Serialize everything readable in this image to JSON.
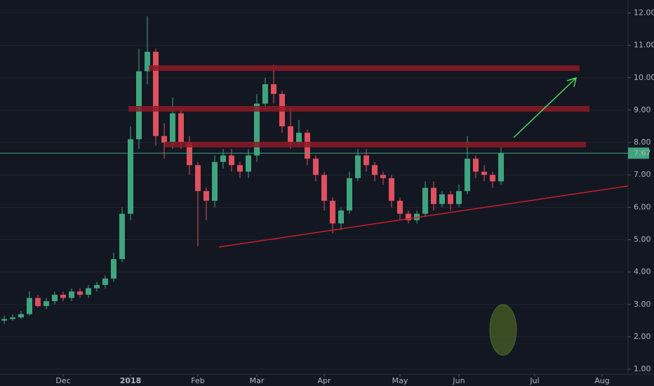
{
  "chart_data": {
    "type": "candlestick",
    "categories": [
      null,
      null,
      null,
      null,
      null,
      null,
      null,
      null,
      null,
      null,
      null,
      null,
      null,
      null,
      null,
      null,
      null,
      null,
      null,
      null,
      null,
      null,
      null,
      null,
      null,
      null,
      null,
      null,
      null,
      null,
      null,
      null,
      null,
      null,
      null,
      null,
      null,
      null,
      null,
      null,
      null,
      null,
      null,
      null,
      null,
      null,
      null,
      null,
      null,
      null,
      null,
      null,
      null,
      null,
      null,
      null,
      null,
      null,
      null,
      null
    ],
    "open": [
      2.5,
      2.55,
      2.6,
      2.7,
      3.2,
      2.95,
      3.1,
      3.3,
      3.2,
      3.4,
      3.3,
      3.5,
      3.6,
      3.8,
      4.4,
      5.8,
      8.1,
      10.2,
      10.8,
      8.2,
      8.0,
      8.9,
      8.0,
      7.3,
      6.5,
      6.2,
      7.4,
      7.6,
      7.3,
      7.1,
      7.6,
      9.2,
      9.8,
      9.5,
      8.5,
      8.0,
      8.3,
      7.5,
      7.0,
      6.2,
      5.5,
      5.9,
      6.9,
      7.6,
      7.3,
      7.0,
      6.9,
      6.2,
      5.8,
      5.6,
      5.8,
      6.6,
      6.1,
      6.4,
      6.1,
      6.5,
      7.5,
      7.1,
      7.0,
      6.8
    ],
    "high": [
      2.65,
      2.7,
      2.8,
      3.4,
      3.3,
      3.2,
      3.4,
      3.4,
      3.5,
      3.5,
      3.6,
      3.7,
      3.9,
      4.6,
      6.0,
      8.5,
      10.9,
      11.9,
      10.9,
      8.6,
      9.4,
      9.0,
      8.2,
      7.4,
      6.6,
      7.6,
      7.8,
      7.8,
      7.4,
      7.8,
      9.5,
      10.0,
      10.4,
      9.6,
      9.1,
      8.7,
      8.4,
      7.6,
      7.1,
      6.3,
      6.0,
      7.1,
      7.8,
      7.8,
      7.4,
      7.1,
      7.0,
      6.3,
      5.9,
      5.9,
      6.8,
      6.8,
      6.5,
      6.5,
      6.7,
      8.2,
      7.6,
      7.3,
      7.1,
      7.85
    ],
    "low": [
      2.4,
      2.5,
      2.55,
      2.65,
      2.9,
      2.85,
      3.0,
      3.1,
      3.1,
      3.2,
      3.2,
      3.4,
      3.5,
      3.7,
      4.3,
      5.6,
      7.8,
      9.8,
      7.9,
      7.5,
      7.8,
      7.8,
      7.0,
      4.8,
      5.6,
      6.0,
      7.2,
      7.1,
      6.9,
      6.9,
      7.4,
      9.0,
      9.2,
      8.3,
      7.8,
      7.9,
      7.3,
      6.8,
      5.9,
      5.2,
      5.3,
      5.8,
      6.8,
      7.1,
      6.8,
      6.7,
      6.0,
      5.6,
      5.5,
      5.5,
      5.7,
      5.9,
      6.0,
      5.9,
      6.0,
      6.4,
      6.9,
      6.8,
      6.6,
      6.7
    ],
    "close": [
      2.55,
      2.6,
      2.7,
      3.2,
      2.95,
      3.1,
      3.3,
      3.2,
      3.4,
      3.3,
      3.5,
      3.6,
      3.8,
      4.4,
      5.8,
      8.1,
      10.2,
      10.8,
      8.2,
      8.0,
      8.9,
      8.0,
      7.3,
      6.5,
      6.2,
      7.4,
      7.6,
      7.3,
      7.1,
      7.6,
      9.2,
      9.8,
      9.5,
      8.5,
      8.0,
      8.3,
      7.5,
      7.0,
      6.2,
      5.5,
      5.9,
      6.9,
      7.6,
      7.3,
      7.0,
      6.9,
      6.2,
      5.8,
      5.6,
      5.8,
      6.6,
      6.1,
      6.4,
      6.1,
      6.5,
      7.5,
      7.1,
      7.0,
      6.8,
      7.67
    ],
    "up_color": "#3fa57e",
    "down_color": "#e0505e",
    "ylim": [
      0.85,
      12.4
    ],
    "yticks": [
      {
        "value": 1,
        "label": "1.00"
      },
      {
        "value": 2,
        "label": "2.00"
      },
      {
        "value": 3,
        "label": "3.00"
      },
      {
        "value": 4,
        "label": "4.00"
      },
      {
        "value": 5,
        "label": "5.00"
      },
      {
        "value": 6,
        "label": "6.00"
      },
      {
        "value": 7,
        "label": "7.00"
      },
      {
        "value": 8,
        "label": "8.00"
      },
      {
        "value": 9,
        "label": "9.00"
      },
      {
        "value": 10,
        "label": "10.00"
      },
      {
        "value": 11,
        "label": "11.00"
      },
      {
        "value": 12,
        "label": "12.00"
      }
    ],
    "xticks": [
      {
        "value": 7,
        "label": "Dec"
      },
      {
        "value": 15,
        "label": "2018"
      },
      {
        "value": 23,
        "label": "Feb"
      },
      {
        "value": 30,
        "label": "Mar"
      },
      {
        "value": 38,
        "label": "Apr"
      },
      {
        "value": 47,
        "label": "May"
      },
      {
        "value": 54,
        "label": "Jun"
      },
      {
        "value": 63,
        "label": "Jul"
      },
      {
        "value": 71,
        "label": "Aug"
      }
    ],
    "last_price": {
      "value": 7.67,
      "label": "7.67"
    }
  }
}
